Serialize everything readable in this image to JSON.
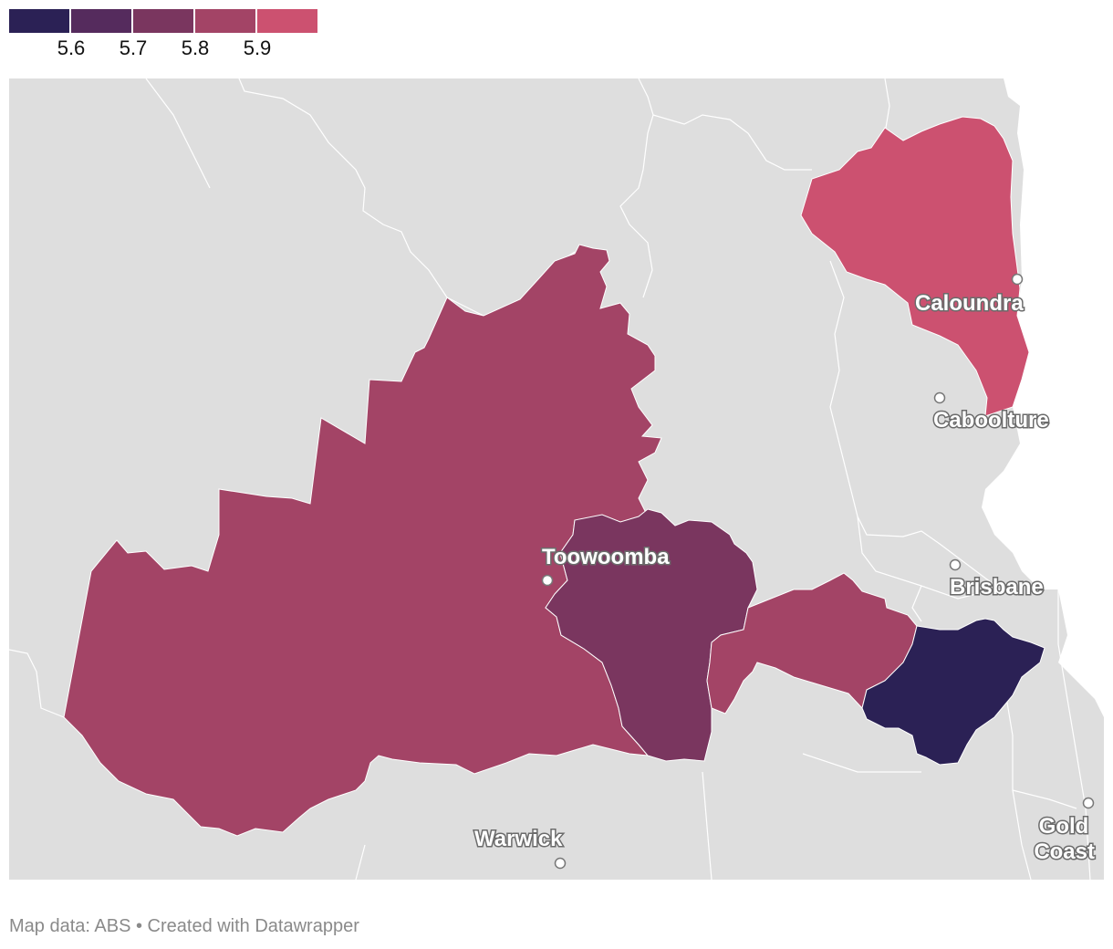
{
  "legend": {
    "colors": [
      "#2b2155",
      "#552b5d",
      "#7a365f",
      "#a34466",
      "#cc5170"
    ],
    "ticks": [
      "5.6",
      "5.7",
      "5.8",
      "5.9"
    ]
  },
  "map": {
    "background_color": "#dedede",
    "border_color": "#ffffff",
    "cities": [
      {
        "name": "Caloundra"
      },
      {
        "name": "Caboolture"
      },
      {
        "name": "Toowoomba"
      },
      {
        "name": "Brisbane"
      },
      {
        "name": "Warwick"
      },
      {
        "name": "Gold Coast",
        "lines": [
          "Gold",
          "Coast"
        ]
      }
    ]
  },
  "footer": {
    "credit": "Map data: ABS • Created with Datawrapper"
  }
}
